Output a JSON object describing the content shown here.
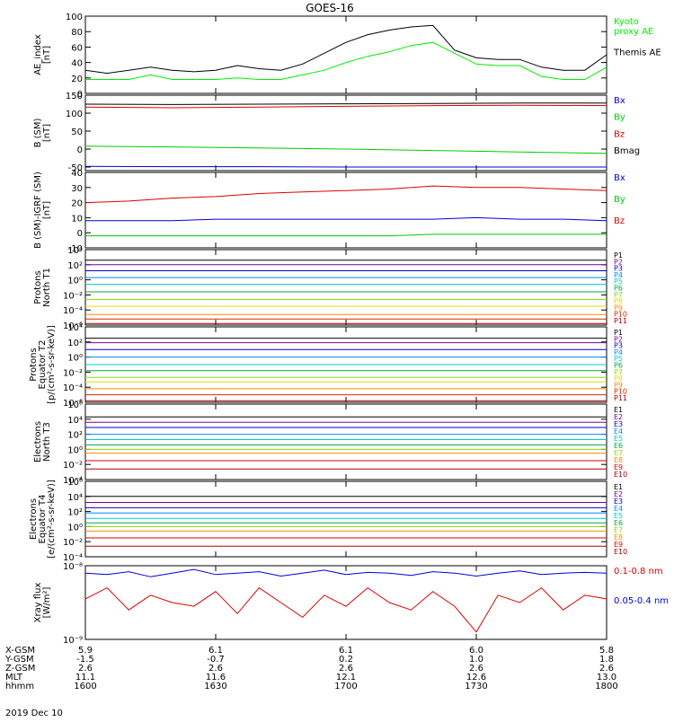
{
  "title": "GOES-16",
  "date": "2019 Dec 10",
  "colors": {
    "axis": "#000000",
    "black": "#000000",
    "blue": "#0000dd",
    "green": "#00cc00",
    "red": "#dd0000",
    "kyoto_green": "#00ee00"
  },
  "orbit": {
    "row_labels": [
      "X-GSM",
      "Y-GSM",
      "Z-GSM",
      "MLT",
      "hhmm"
    ],
    "columns": [
      {
        "values": [
          "5.9",
          "-1.5",
          "2.6",
          "11.1",
          "1600"
        ]
      },
      {
        "values": [
          "6.1",
          "-0.7",
          "2.6",
          "11.6",
          "1630"
        ]
      },
      {
        "values": [
          "6.1",
          "0.2",
          "2.6",
          "12.1",
          "1700"
        ]
      },
      {
        "values": [
          "6.0",
          "1.0",
          "2.6",
          "12.6",
          "1730"
        ]
      },
      {
        "values": [
          "5.8",
          "1.8",
          "2.6",
          "13.0",
          "1800"
        ]
      }
    ]
  },
  "chart_data": [
    {
      "id": "ae",
      "type": "line",
      "ylabel": "AE_index\n[nT]",
      "ylim": [
        0,
        100
      ],
      "yticks": [
        "0",
        "20",
        "40",
        "60",
        "80",
        "100"
      ],
      "ytick_values": [
        0,
        20,
        40,
        60,
        80,
        100
      ],
      "x": [
        0,
        5,
        10,
        15,
        20,
        25,
        30,
        35,
        40,
        45,
        50,
        55,
        60,
        65,
        70,
        75,
        80,
        85,
        90,
        95,
        100,
        105,
        110,
        115,
        120
      ],
      "series": [
        {
          "name": "Kyoto\nproxy AE",
          "color": "#00ee00",
          "values": [
            18,
            18,
            18,
            24,
            18,
            18,
            18,
            20,
            18,
            18,
            24,
            30,
            40,
            48,
            54,
            62,
            66,
            52,
            38,
            36,
            36,
            22,
            18,
            18,
            34
          ]
        },
        {
          "name": "Themis AE",
          "color": "#000000",
          "values": [
            30,
            26,
            30,
            34,
            30,
            28,
            30,
            36,
            32,
            30,
            38,
            52,
            66,
            76,
            82,
            86,
            88,
            56,
            46,
            44,
            44,
            34,
            30,
            30,
            50
          ]
        }
      ],
      "legend_placement": "right"
    },
    {
      "id": "bsm",
      "type": "line",
      "ylabel": "B (SM)\n[nT]",
      "ylim": [
        -60,
        150
      ],
      "yticks": [
        "-50",
        "0",
        "50",
        "100",
        "150"
      ],
      "ytick_values": [
        -50,
        0,
        50,
        100,
        150
      ],
      "x": [
        0,
        20,
        40,
        60,
        80,
        100,
        120
      ],
      "series": [
        {
          "name": "Bx",
          "color": "#0000dd",
          "values": [
            -48,
            -49,
            -49,
            -50,
            -50,
            -50,
            -50
          ]
        },
        {
          "name": "By",
          "color": "#00cc00",
          "values": [
            8,
            6,
            3,
            0,
            -4,
            -8,
            -12
          ]
        },
        {
          "name": "Bz",
          "color": "#dd0000",
          "values": [
            117,
            115,
            117,
            119,
            121,
            122,
            121
          ]
        },
        {
          "name": "Bmag",
          "color": "#000000",
          "values": [
            125,
            124,
            125,
            126,
            127,
            128,
            128
          ]
        }
      ],
      "legend_placement": "right"
    },
    {
      "id": "bigrf",
      "type": "line",
      "ylabel": "B (SM)-IGRF (SM)\n[nT]",
      "ylim": [
        -10,
        40
      ],
      "yticks": [
        "-10",
        "0",
        "10",
        "20",
        "30",
        "40"
      ],
      "ytick_values": [
        -10,
        0,
        10,
        20,
        30,
        40
      ],
      "x": [
        0,
        10,
        20,
        30,
        40,
        50,
        60,
        70,
        80,
        90,
        100,
        110,
        120
      ],
      "series": [
        {
          "name": "Bx",
          "color": "#0000dd",
          "values": [
            8,
            8,
            8,
            9,
            9,
            9,
            9,
            9,
            9,
            10,
            9,
            9,
            8
          ]
        },
        {
          "name": "By",
          "color": "#00cc00",
          "values": [
            -2,
            -2,
            -2,
            -2,
            -2,
            -2,
            -2,
            -2,
            -1,
            -1,
            -1,
            -1,
            -1
          ]
        },
        {
          "name": "Bz",
          "color": "#dd0000",
          "values": [
            20,
            21,
            23,
            24,
            26,
            27,
            28,
            29,
            31,
            30,
            30,
            29,
            28
          ]
        }
      ],
      "legend_placement": "right"
    },
    {
      "id": "pn",
      "type": "line",
      "ylabel": "Protons\nNorth T1",
      "yscale": "log",
      "ylim_exp": [
        -6,
        4
      ],
      "yticks": [
        "10⁻⁶",
        "10⁻⁴",
        "10⁻²",
        "10⁰",
        "10²",
        "10⁴"
      ],
      "ytick_values": [
        -6,
        -4,
        -2,
        0,
        2,
        4
      ],
      "x": [
        0,
        120
      ],
      "series": [
        {
          "name": "P1",
          "color": "#000000",
          "values_exp": [
            2.6,
            2.6
          ]
        },
        {
          "name": "P2",
          "color": "#7a0090",
          "values_exp": [
            2.0,
            2.0
          ]
        },
        {
          "name": "P3",
          "color": "#0000dd",
          "values_exp": [
            1.2,
            1.2
          ]
        },
        {
          "name": "P4",
          "color": "#0088ff",
          "values_exp": [
            0.3,
            0.3
          ]
        },
        {
          "name": "P5",
          "color": "#00cccc",
          "values_exp": [
            -0.6,
            -0.6
          ]
        },
        {
          "name": "P6",
          "color": "#00aa44",
          "values_exp": [
            -1.6,
            -1.6
          ]
        },
        {
          "name": "P7",
          "color": "#88dd00",
          "values_exp": [
            -2.6,
            -2.6
          ]
        },
        {
          "name": "P8",
          "color": "#dddd00",
          "values_exp": [
            -3.5,
            -3.5
          ]
        },
        {
          "name": "P9",
          "color": "#ff8800",
          "values_exp": [
            -4.6,
            -4.6
          ]
        },
        {
          "name": "P10",
          "color": "#dd2200",
          "values_exp": [
            -5.2,
            -5.2
          ]
        },
        {
          "name": "P11",
          "color": "#aa0000",
          "values_exp": [
            -5.8,
            -5.8
          ]
        }
      ],
      "legend_placement": "right"
    },
    {
      "id": "pe",
      "type": "line",
      "ylabel": "Protons\nEquator T2\n[p/(cm²-s-sr-keV)]",
      "yscale": "log",
      "ylim_exp": [
        -6,
        4
      ],
      "yticks": [
        "10⁻⁶",
        "10⁻⁴",
        "10⁻²",
        "10⁰",
        "10²",
        "10⁴"
      ],
      "ytick_values": [
        -6,
        -4,
        -2,
        0,
        2,
        4
      ],
      "x": [
        0,
        120
      ],
      "series": [
        {
          "name": "P1",
          "color": "#000000",
          "values_exp": [
            2.5,
            2.5
          ]
        },
        {
          "name": "P2",
          "color": "#7a0090",
          "values_exp": [
            1.9,
            1.9
          ]
        },
        {
          "name": "P3",
          "color": "#0000dd",
          "values_exp": [
            1.0,
            1.0
          ]
        },
        {
          "name": "P4",
          "color": "#0088ff",
          "values_exp": [
            0.0,
            0.0
          ]
        },
        {
          "name": "P5",
          "color": "#00cccc",
          "values_exp": [
            -1.0,
            -1.0
          ]
        },
        {
          "name": "P6",
          "color": "#00aa44",
          "values_exp": [
            -1.8,
            -1.8
          ]
        },
        {
          "name": "P7",
          "color": "#88dd00",
          "values_exp": [
            -2.7,
            -2.7
          ]
        },
        {
          "name": "P8",
          "color": "#dddd00",
          "values_exp": [
            -3.3,
            -3.3
          ]
        },
        {
          "name": "P9",
          "color": "#ff8800",
          "values_exp": [
            -4.2,
            -4.2
          ]
        },
        {
          "name": "P10",
          "color": "#dd2200",
          "values_exp": [
            -5.0,
            -5.0
          ]
        },
        {
          "name": "P11",
          "color": "#aa0000",
          "values_exp": [
            -5.8,
            -5.8
          ]
        }
      ],
      "legend_placement": "right"
    },
    {
      "id": "en",
      "type": "line",
      "ylabel": "Electrons\nNorth T3",
      "yscale": "log",
      "ylim_exp": [
        -4,
        6
      ],
      "yticks": [
        "10⁻⁴",
        "10⁻²",
        "10⁰",
        "10²",
        "10⁴",
        "10⁶"
      ],
      "ytick_values": [
        -4,
        -2,
        0,
        2,
        4,
        6
      ],
      "x": [
        0,
        120
      ],
      "series": [
        {
          "name": "E1",
          "color": "#000000",
          "values_exp": [
            4.3,
            4.3
          ]
        },
        {
          "name": "E2",
          "color": "#7a0090",
          "values_exp": [
            3.6,
            3.6
          ]
        },
        {
          "name": "E3",
          "color": "#0000dd",
          "values_exp": [
            2.9,
            2.9
          ]
        },
        {
          "name": "E4",
          "color": "#0088ff",
          "values_exp": [
            2.0,
            2.0
          ]
        },
        {
          "name": "E5",
          "color": "#00cccc",
          "values_exp": [
            1.3,
            1.3
          ]
        },
        {
          "name": "E6",
          "color": "#00aa44",
          "values_exp": [
            0.6,
            0.6
          ]
        },
        {
          "name": "E7",
          "color": "#88dd00",
          "values_exp": [
            0.0,
            0.0
          ]
        },
        {
          "name": "E8",
          "color": "#ff8800",
          "values_exp": [
            -0.5,
            -0.5
          ]
        },
        {
          "name": "E9",
          "color": "#dd0000",
          "values_exp": [
            -1.5,
            -1.5
          ]
        },
        {
          "name": "E10",
          "color": "#aa0000",
          "values_exp": [
            -2.6,
            -2.6
          ]
        }
      ],
      "legend_placement": "right"
    },
    {
      "id": "ee",
      "type": "line",
      "ylabel": "Electrons\nEquator T4\n[e/(cm²-s-sr-keV)]",
      "yscale": "log",
      "ylim_exp": [
        -4,
        6
      ],
      "yticks": [
        "10⁻⁴",
        "10⁻²",
        "10⁰",
        "10²",
        "10⁴",
        "10⁶"
      ],
      "ytick_values": [
        -4,
        -2,
        0,
        2,
        4,
        6
      ],
      "x": [
        0,
        120
      ],
      "series": [
        {
          "name": "E1",
          "color": "#000000",
          "values_exp": [
            4.0,
            4.0
          ]
        },
        {
          "name": "E2",
          "color": "#7a0090",
          "values_exp": [
            3.2,
            3.2
          ]
        },
        {
          "name": "E3",
          "color": "#0000dd",
          "values_exp": [
            2.5,
            2.5
          ]
        },
        {
          "name": "E4",
          "color": "#0088ff",
          "values_exp": [
            1.8,
            1.8
          ]
        },
        {
          "name": "E5",
          "color": "#00cccc",
          "values_exp": [
            1.1,
            1.1
          ]
        },
        {
          "name": "E6",
          "color": "#00aa44",
          "values_exp": [
            0.5,
            0.5
          ]
        },
        {
          "name": "E7",
          "color": "#88dd00",
          "values_exp": [
            0.0,
            0.0
          ]
        },
        {
          "name": "E8",
          "color": "#ff8800",
          "values_exp": [
            -0.6,
            -0.6
          ]
        },
        {
          "name": "E9",
          "color": "#dd0000",
          "values_exp": [
            -1.5,
            -1.5
          ]
        },
        {
          "name": "E10",
          "color": "#aa0000",
          "values_exp": [
            -2.6,
            -2.6
          ]
        }
      ],
      "legend_placement": "right"
    },
    {
      "id": "xray",
      "type": "line",
      "ylabel": "Xray flux\n[W/m²]",
      "yscale": "log",
      "ylim_exp": [
        -9,
        -8
      ],
      "yticks": [
        "10⁻⁹",
        "10⁻⁸"
      ],
      "ytick_values": [
        -9,
        -8
      ],
      "x": [
        0,
        5,
        10,
        15,
        20,
        25,
        30,
        35,
        40,
        45,
        50,
        55,
        60,
        65,
        70,
        75,
        80,
        85,
        90,
        95,
        100,
        105,
        110,
        115,
        120
      ],
      "series": [
        {
          "name": "0.1-0.8 nm",
          "color": "#dd0000",
          "values_exp": [
            -8.45,
            -8.3,
            -8.6,
            -8.4,
            -8.5,
            -8.55,
            -8.35,
            -8.65,
            -8.3,
            -8.5,
            -8.7,
            -8.4,
            -8.55,
            -8.3,
            -8.5,
            -8.6,
            -8.35,
            -8.55,
            -8.9,
            -8.4,
            -8.5,
            -8.3,
            -8.6,
            -8.4,
            -8.45
          ]
        },
        {
          "name": "0.05-0.4 nm",
          "color": "#0000dd",
          "values_exp": [
            -8.1,
            -8.12,
            -8.08,
            -8.15,
            -8.1,
            -8.05,
            -8.12,
            -8.1,
            -8.08,
            -8.14,
            -8.1,
            -8.06,
            -8.12,
            -8.09,
            -8.1,
            -8.13,
            -8.08,
            -8.1,
            -8.14,
            -8.1,
            -8.07,
            -8.12,
            -8.1,
            -8.09,
            -8.1
          ]
        }
      ],
      "legend_placement": "right"
    }
  ]
}
